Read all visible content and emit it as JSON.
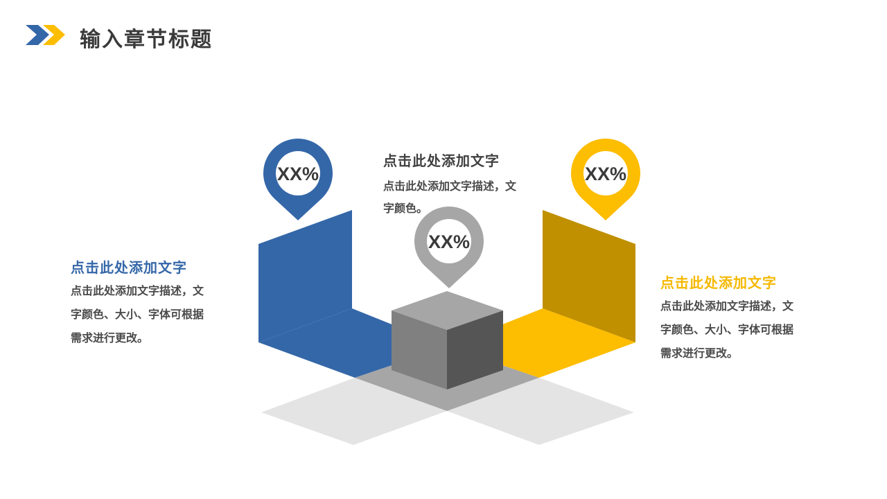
{
  "header": {
    "title": "输入章节标题",
    "icon": "double-chevron-icon"
  },
  "colors": {
    "blue": "#3467a8",
    "yellow": "#fdbd00",
    "dark_yellow": "#c09000",
    "gray": "#a6a6a6",
    "text": "#404040"
  },
  "pins": [
    {
      "label": "XX%",
      "color": "#3467a8"
    },
    {
      "label": "XX%",
      "color": "#a6a6a6"
    },
    {
      "label": "XX%",
      "color": "#fdbd00"
    }
  ],
  "blocks": {
    "left": {
      "heading": "点击此处添加文字",
      "lines": [
        "点击此处添加文字描述，文",
        "字颜色、大小、字体可根据",
        "需求进行更改。"
      ]
    },
    "center": {
      "heading": "点击此处添加文字",
      "lines": [
        "点击此处添加文字描述，文",
        "字颜色。"
      ]
    },
    "right": {
      "heading": "点击此处添加文字",
      "lines": [
        "点击此处添加文字描述，文",
        "字颜色、大小、字体可根据",
        "需求进行更改。"
      ]
    }
  }
}
